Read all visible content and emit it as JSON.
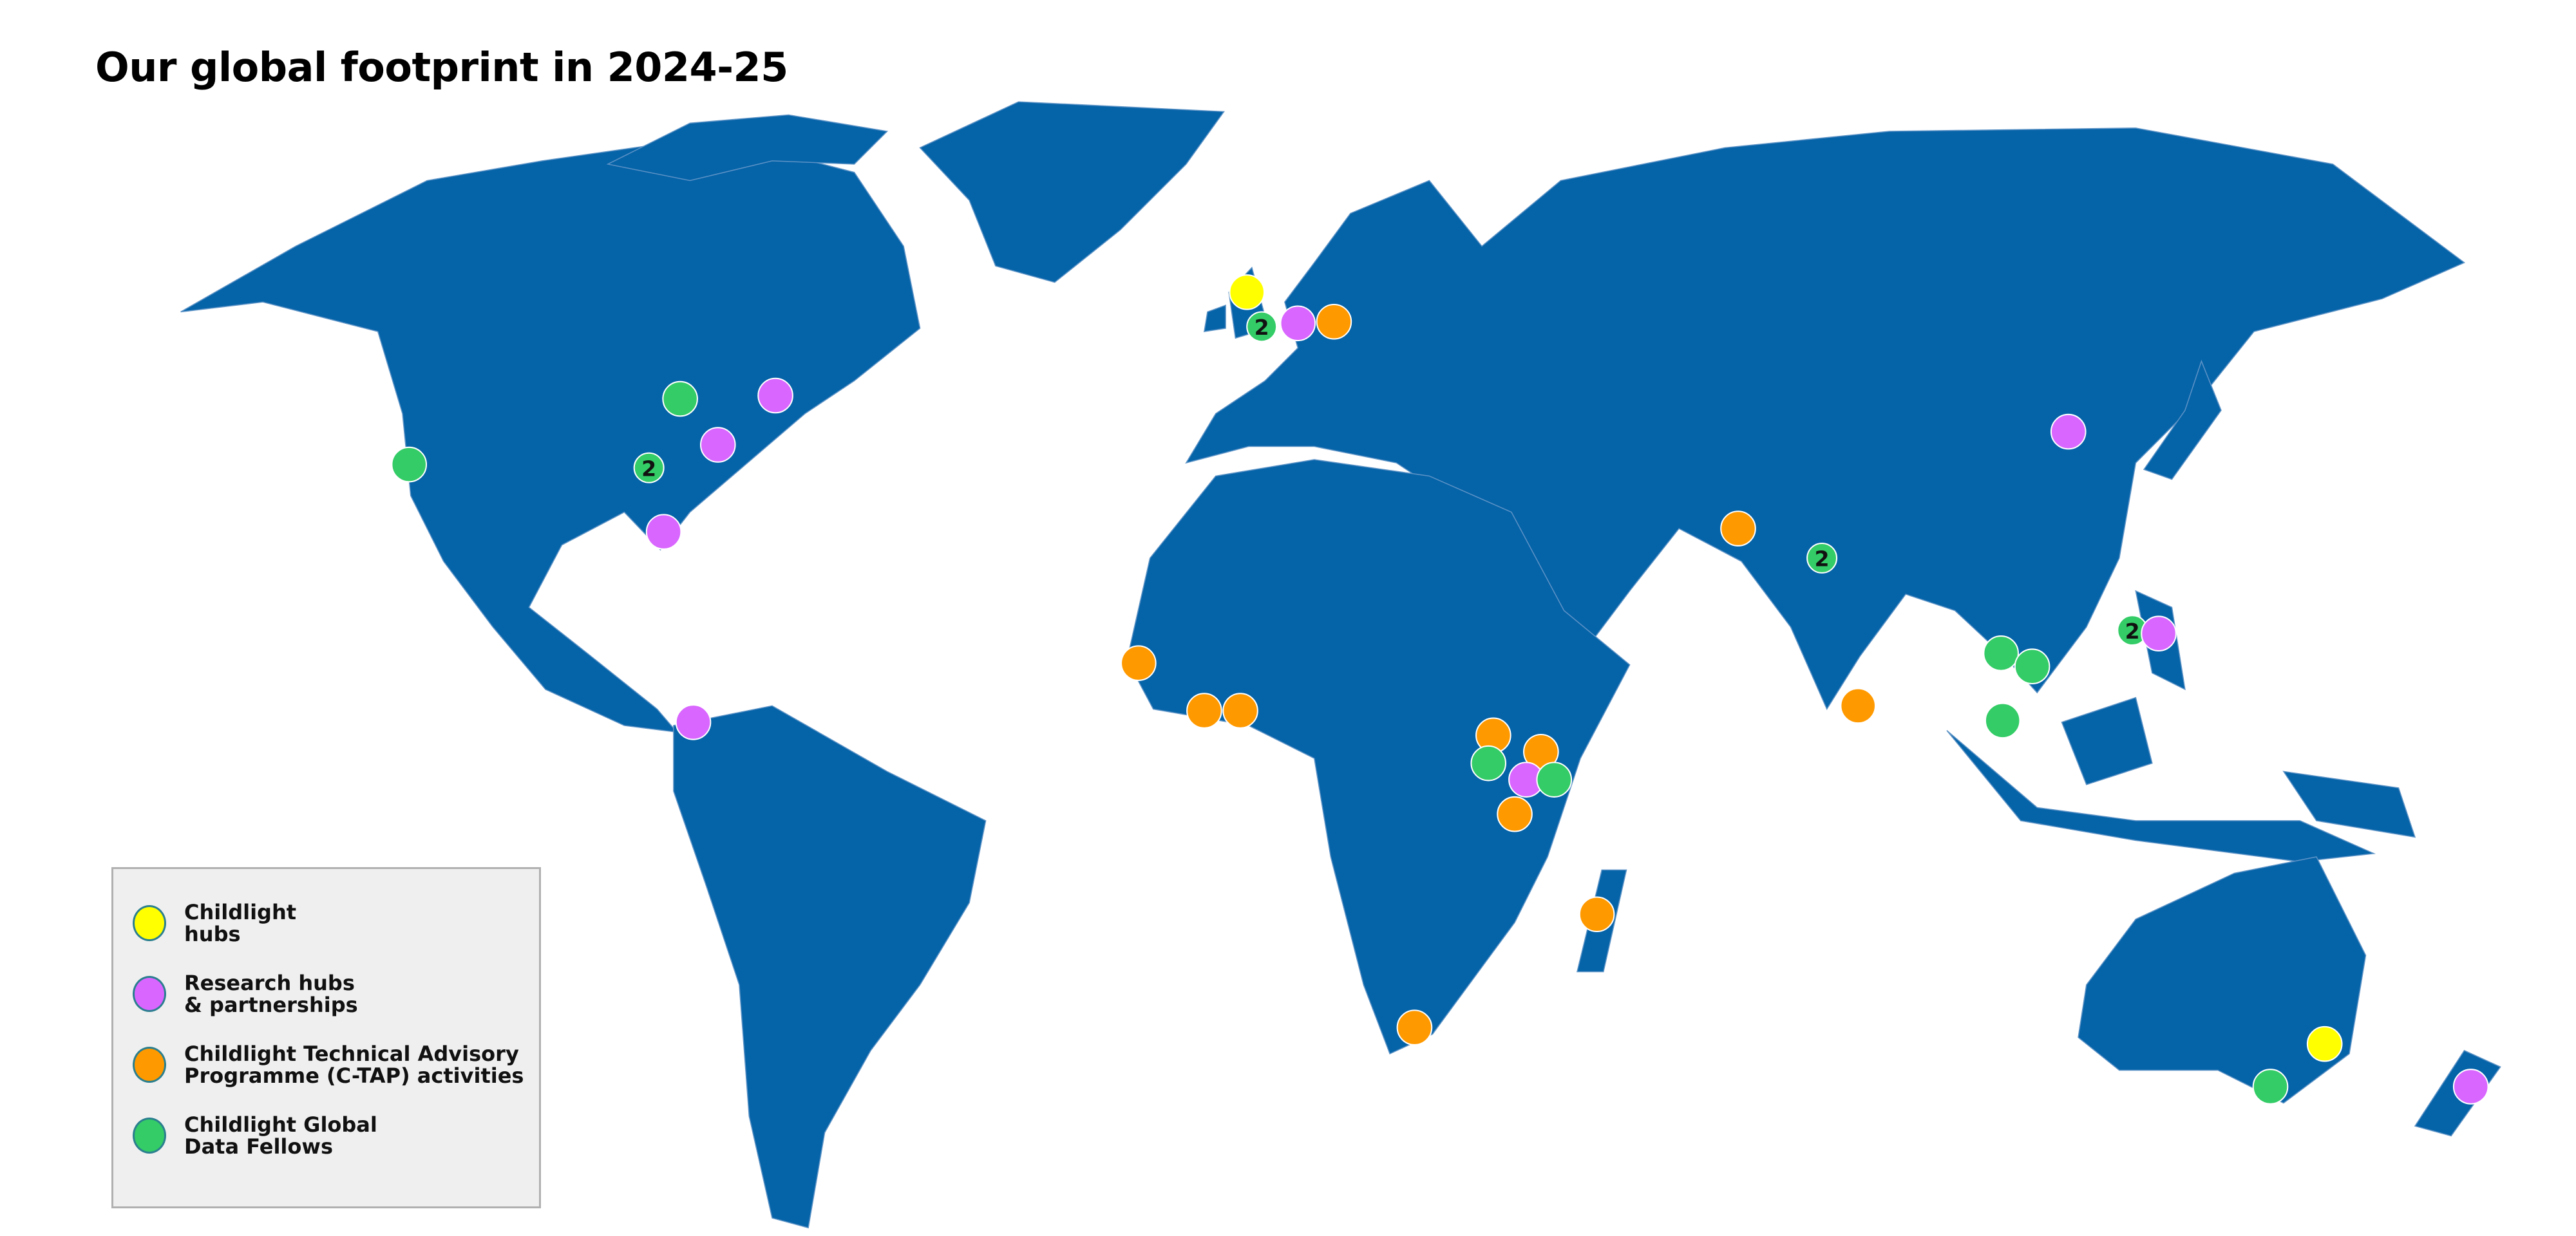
{
  "title": "Our global footprint in 2024-25",
  "colors": {
    "land": "#0563a8",
    "childlight_hubs": "#ffff00",
    "research_hubs": "#d966ff",
    "ctap": "#ff9900",
    "data_fellows": "#33cc66"
  },
  "legend": [
    {
      "key": "childlight_hubs",
      "label": "Childlight\nhubs"
    },
    {
      "key": "research_hubs",
      "label": "Research hubs\n& partnerships"
    },
    {
      "key": "ctap",
      "label": "Childlight Technical Advisory\nProgramme (C-TAP) activities"
    },
    {
      "key": "data_fellows",
      "label": "Childlight Global\nData Fellows"
    }
  ],
  "markers": [
    {
      "type": "childlight_hubs",
      "count": ""
    },
    {
      "type": "data_fellows",
      "count": "2"
    },
    {
      "type": "research_hubs",
      "count": ""
    },
    {
      "type": "ctap",
      "count": ""
    },
    {
      "type": "data_fellows",
      "count": ""
    },
    {
      "type": "research_hubs",
      "count": ""
    },
    {
      "type": "research_hubs",
      "count": ""
    },
    {
      "type": "data_fellows",
      "count": "2"
    },
    {
      "type": "data_fellows",
      "count": ""
    },
    {
      "type": "research_hubs",
      "count": ""
    },
    {
      "type": "research_hubs",
      "count": ""
    },
    {
      "type": "ctap",
      "count": ""
    },
    {
      "type": "data_fellows",
      "count": "2"
    },
    {
      "type": "ctap",
      "count": ""
    },
    {
      "type": "data_fellows",
      "count": "2"
    },
    {
      "type": "research_hubs",
      "count": ""
    },
    {
      "type": "data_fellows",
      "count": ""
    },
    {
      "type": "data_fellows",
      "count": ""
    },
    {
      "type": "data_fellows",
      "count": ""
    },
    {
      "type": "research_hubs",
      "count": ""
    },
    {
      "type": "ctap",
      "count": ""
    },
    {
      "type": "ctap",
      "count": ""
    },
    {
      "type": "ctap",
      "count": ""
    },
    {
      "type": "ctap",
      "count": ""
    },
    {
      "type": "data_fellows",
      "count": ""
    },
    {
      "type": "ctap",
      "count": ""
    },
    {
      "type": "research_hubs",
      "count": ""
    },
    {
      "type": "data_fellows",
      "count": ""
    },
    {
      "type": "ctap",
      "count": ""
    },
    {
      "type": "ctap",
      "count": ""
    },
    {
      "type": "ctap",
      "count": ""
    },
    {
      "type": "childlight_hubs",
      "count": ""
    },
    {
      "type": "data_fellows",
      "count": ""
    },
    {
      "type": "research_hubs",
      "count": ""
    }
  ]
}
